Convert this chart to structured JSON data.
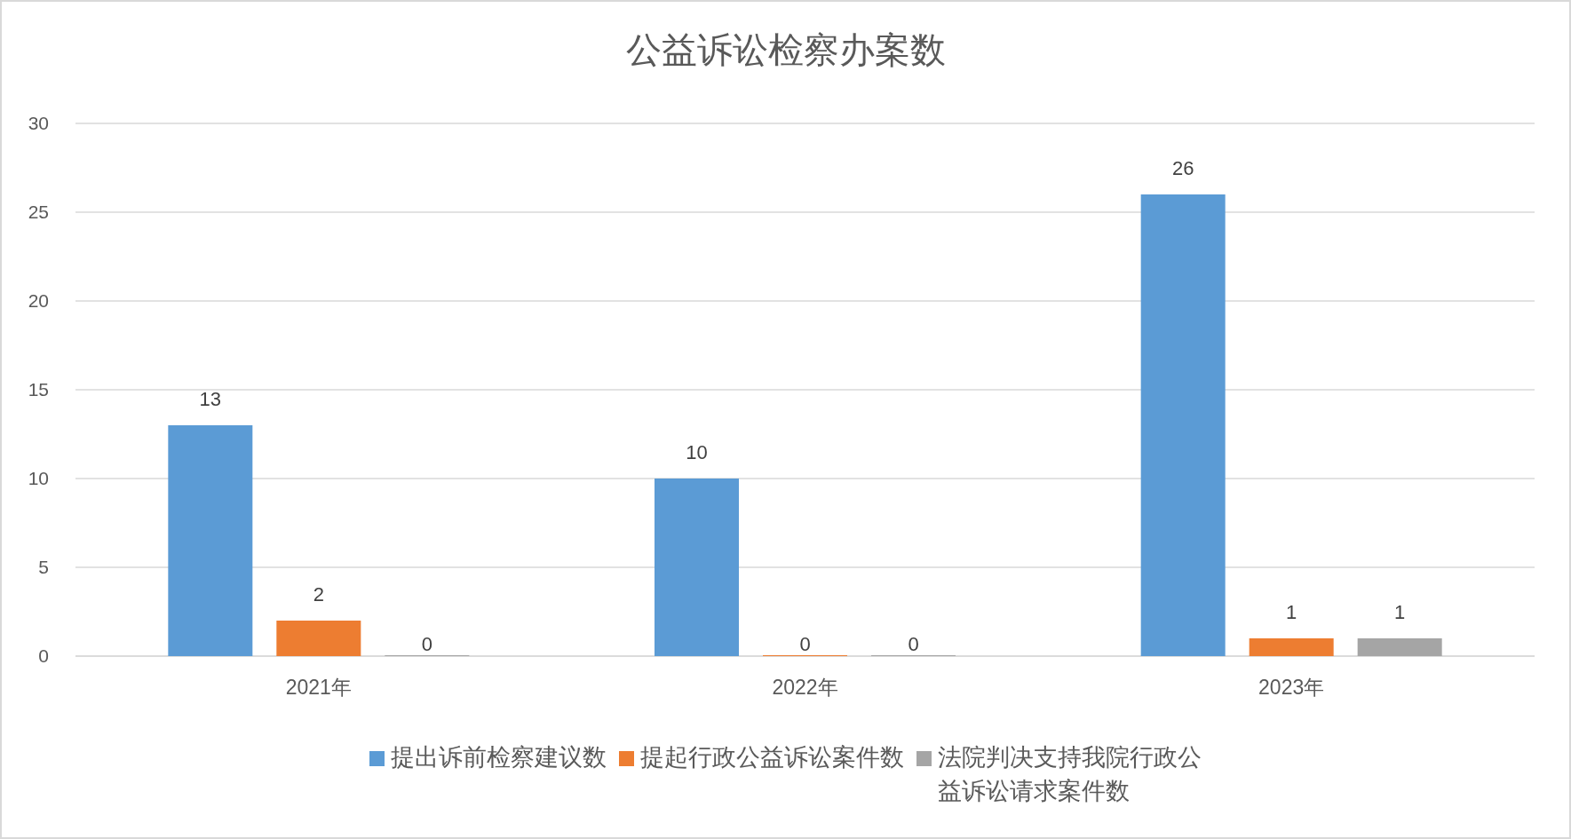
{
  "chart_data": {
    "type": "bar",
    "title": "公益诉讼检察办案数",
    "categories": [
      "2021年",
      "2022年",
      "2023年"
    ],
    "series": [
      {
        "name": "提出诉前检察建议数",
        "color": "#5b9bd5",
        "values": [
          13,
          10,
          26
        ]
      },
      {
        "name": "提起行政公益诉讼案件数",
        "color": "#ed7d31",
        "values": [
          2,
          0,
          1
        ]
      },
      {
        "name": "法院判决支持我院行政公益诉讼请求案件数",
        "color": "#a5a5a5",
        "values": [
          0,
          0,
          1
        ]
      }
    ],
    "ylim": [
      0,
      30
    ],
    "yticks": [
      0,
      5,
      10,
      15,
      20,
      25,
      30
    ],
    "grid": "y",
    "legend": "bottom",
    "data_labels": true
  }
}
